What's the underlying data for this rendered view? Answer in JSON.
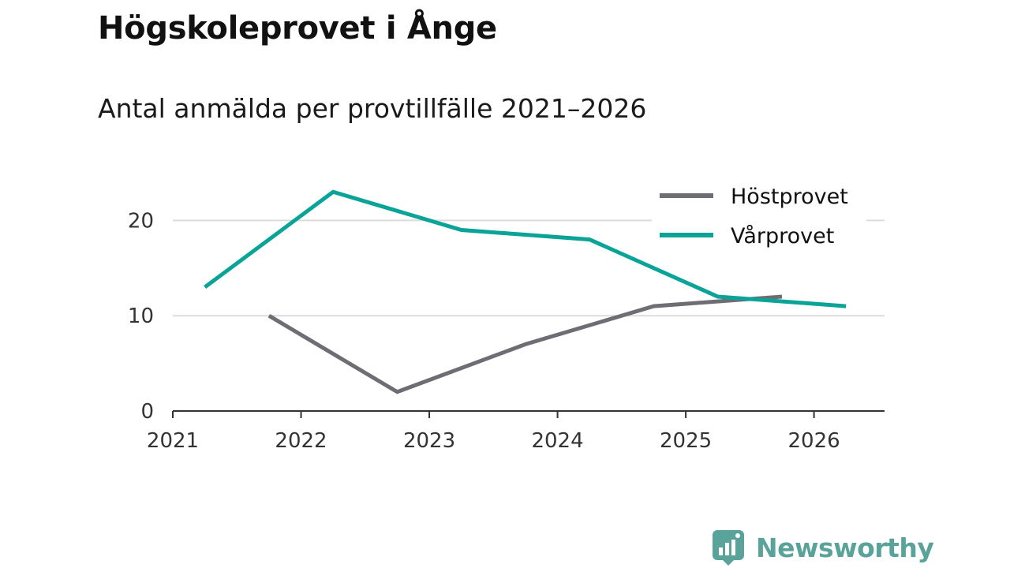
{
  "title": "Högskoleprovet i Ånge",
  "subtitle": "Antal anmälda per provtillfälle 2021–2026",
  "brand": {
    "name": "Newsworthy"
  },
  "colors": {
    "hostprovet": "#6e6d74",
    "varprovet": "#0aa397",
    "grid": "#dcdcdc",
    "axis": "#333333",
    "brand": "#5aa39a"
  },
  "chart_data": {
    "type": "line",
    "title": "Antal anmälda per provtillfälle 2021–2026",
    "xlabel": "",
    "ylabel": "",
    "xlim": [
      2021,
      2026.55
    ],
    "ylim": [
      0,
      25
    ],
    "x_ticks": [
      2021,
      2022,
      2023,
      2024,
      2025,
      2026
    ],
    "y_ticks": [
      0,
      10,
      20
    ],
    "grid": true,
    "legend_position": "top-right",
    "series": [
      {
        "name": "Höstprovet",
        "color": "#6e6d74",
        "x": [
          2021.75,
          2022.75,
          2023.75,
          2024.75,
          2025.75
        ],
        "values": [
          10,
          2,
          7,
          11,
          12
        ]
      },
      {
        "name": "Vårprovet",
        "color": "#0aa397",
        "x": [
          2021.25,
          2022.25,
          2023.25,
          2024.25,
          2025.25,
          2026.25
        ],
        "values": [
          13,
          23,
          19,
          18,
          12,
          11
        ]
      }
    ]
  }
}
